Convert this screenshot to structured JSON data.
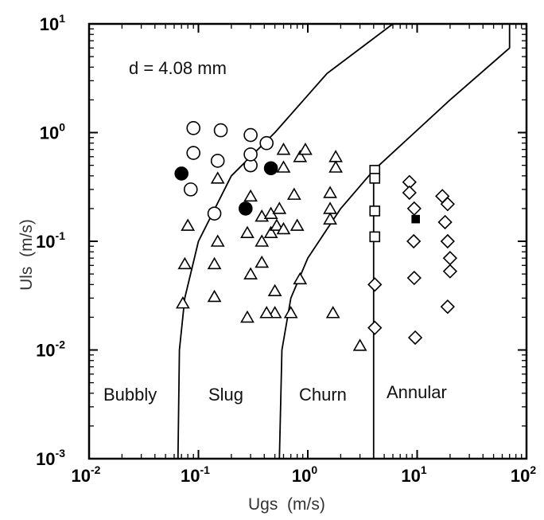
{
  "chart_data": {
    "type": "scatter",
    "title": "",
    "annotation": "d = 4.08 mm",
    "xlabel": "Ugs  (m/s)",
    "ylabel": "Uls  (m/s)",
    "xscale": "log",
    "yscale": "log",
    "xlim": [
      0.01,
      100
    ],
    "ylim": [
      0.001,
      10
    ],
    "x_ticks": [
      0.01,
      0.1,
      1,
      10,
      100
    ],
    "y_ticks": [
      0.001,
      0.01,
      0.1,
      1,
      10
    ],
    "x_tick_labels": [
      {
        "base": "10",
        "exp": "-2"
      },
      {
        "base": "10",
        "exp": "-1"
      },
      {
        "base": "10",
        "exp": "0"
      },
      {
        "base": "10",
        "exp": "1"
      },
      {
        "base": "10",
        "exp": "2"
      }
    ],
    "y_tick_labels": [
      {
        "base": "10",
        "exp": "-3"
      },
      {
        "base": "10",
        "exp": "-2"
      },
      {
        "base": "10",
        "exp": "-1"
      },
      {
        "base": "10",
        "exp": "0"
      },
      {
        "base": "10",
        "exp": "1"
      }
    ],
    "grid": false,
    "regions": [
      "Bubbly",
      "Slug",
      "Churn",
      "Annular"
    ],
    "boundaries": [
      {
        "points": [
          [
            0.065,
            0.001
          ],
          [
            0.067,
            0.01
          ],
          [
            0.075,
            0.03
          ],
          [
            0.1,
            0.1
          ],
          [
            0.2,
            0.4
          ],
          [
            0.5,
            1
          ],
          [
            1.5,
            3.5
          ],
          [
            6,
            10
          ]
        ]
      },
      {
        "points": [
          [
            0.55,
            0.001
          ],
          [
            0.58,
            0.01
          ],
          [
            0.7,
            0.03
          ],
          [
            1,
            0.07
          ],
          [
            2,
            0.2
          ],
          [
            4,
            0.45
          ],
          [
            20,
            2
          ],
          [
            70,
            6
          ],
          [
            70,
            10
          ]
        ]
      },
      {
        "points": [
          [
            4,
            0.001
          ],
          [
            4,
            0.45
          ]
        ]
      }
    ],
    "series": [
      {
        "marker": "circle-open",
        "points": [
          [
            0.09,
            1.1
          ],
          [
            0.09,
            0.65
          ],
          [
            0.085,
            0.3
          ],
          [
            0.16,
            1.05
          ],
          [
            0.15,
            0.55
          ],
          [
            0.14,
            0.18
          ],
          [
            0.3,
            0.95
          ],
          [
            0.3,
            0.5
          ],
          [
            0.42,
            0.8
          ],
          [
            0.3,
            0.63
          ]
        ]
      },
      {
        "marker": "circle-filled",
        "points": [
          [
            0.07,
            0.42
          ],
          [
            0.27,
            0.2
          ],
          [
            0.46,
            0.47
          ]
        ]
      },
      {
        "marker": "triangle-open",
        "points": [
          [
            0.08,
            0.14
          ],
          [
            0.075,
            0.062
          ],
          [
            0.072,
            0.027
          ],
          [
            0.14,
            0.062
          ],
          [
            0.14,
            0.031
          ],
          [
            0.15,
            0.38
          ],
          [
            0.15,
            0.1
          ],
          [
            0.3,
            0.26
          ],
          [
            0.28,
            0.12
          ],
          [
            0.3,
            0.05
          ],
          [
            0.28,
            0.02
          ],
          [
            0.38,
            0.17
          ],
          [
            0.38,
            0.1
          ],
          [
            0.38,
            0.064
          ],
          [
            0.46,
            0.18
          ],
          [
            0.46,
            0.12
          ],
          [
            0.5,
            0.022
          ],
          [
            0.42,
            0.022
          ],
          [
            0.5,
            0.035
          ],
          [
            0.55,
            0.2
          ],
          [
            0.52,
            0.14
          ],
          [
            0.6,
            0.7
          ],
          [
            0.6,
            0.48
          ],
          [
            0.6,
            0.13
          ],
          [
            0.7,
            0.022
          ],
          [
            0.75,
            0.27
          ],
          [
            0.8,
            0.14
          ],
          [
            0.85,
            0.6
          ],
          [
            0.85,
            0.045
          ],
          [
            0.95,
            0.7
          ],
          [
            1.6,
            0.28
          ],
          [
            1.6,
            0.2
          ],
          [
            1.6,
            0.16
          ],
          [
            1.8,
            0.6
          ],
          [
            1.8,
            0.48
          ],
          [
            1.7,
            0.022
          ],
          [
            3,
            0.011
          ]
        ]
      },
      {
        "marker": "square-open",
        "points": [
          [
            4.1,
            0.45
          ],
          [
            4.1,
            0.38
          ],
          [
            4.1,
            0.19
          ],
          [
            4.1,
            0.11
          ]
        ]
      },
      {
        "marker": "square-filled",
        "points": [
          [
            9.7,
            0.16
          ]
        ]
      },
      {
        "marker": "diamond-open",
        "points": [
          [
            4.1,
            0.04
          ],
          [
            4.1,
            0.016
          ],
          [
            8.5,
            0.35
          ],
          [
            8.5,
            0.28
          ],
          [
            9.4,
            0.2
          ],
          [
            9.3,
            0.1
          ],
          [
            9.4,
            0.046
          ],
          [
            9.6,
            0.013
          ],
          [
            17,
            0.26
          ],
          [
            19,
            0.22
          ],
          [
            18,
            0.15
          ],
          [
            19,
            0.1
          ],
          [
            20,
            0.07
          ],
          [
            20,
            0.053
          ],
          [
            19,
            0.025
          ]
        ]
      }
    ]
  }
}
